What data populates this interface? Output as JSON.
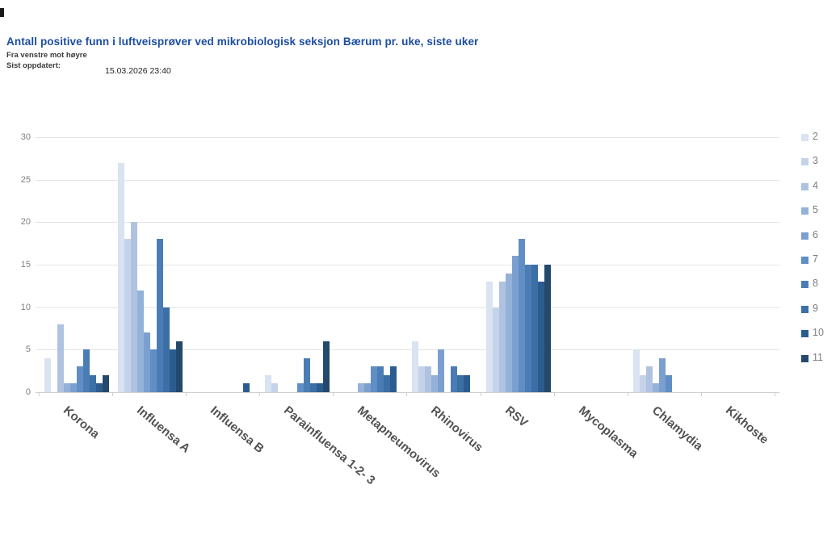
{
  "header": {
    "title": "Antall positive funn i luftveisprøver ved mikrobiologisk seksjon Bærum pr. uke, siste uker",
    "subtitle": "Fra venstre mot høyre",
    "last_updated_label": "Sist oppdatert:",
    "last_updated_value": "15.03.2026 23:40"
  },
  "chart_data": {
    "type": "bar",
    "title": "Antall positive funn i luftveisprøver ved mikrobiologisk seksjon Bærum pr. uke, siste uker",
    "xlabel": "",
    "ylabel": "",
    "ylim": [
      0,
      30
    ],
    "yticks": [
      0,
      5,
      10,
      15,
      20,
      25,
      30
    ],
    "grid": true,
    "legend_position": "right",
    "categories": [
      "Korona",
      "Influensa A",
      "Influensa B",
      "Parainfluensa 1-2- 3",
      "Metapneumovirus",
      "Rhinovirus",
      "RSV",
      "Mycoplasma",
      "Chlamydia",
      "Kikhoste"
    ],
    "series": [
      {
        "name": "2",
        "color": "#D9E3F1",
        "values": [
          4,
          27,
          0,
          2,
          0,
          6,
          13,
          0,
          5,
          0
        ]
      },
      {
        "name": "3",
        "color": "#C5D3EA",
        "values": [
          0,
          18,
          0,
          1,
          0,
          3,
          10,
          0,
          2,
          0
        ]
      },
      {
        "name": "4",
        "color": "#AFC3E1",
        "values": [
          8,
          20,
          0,
          0,
          0,
          3,
          13,
          0,
          3,
          0
        ]
      },
      {
        "name": "5",
        "color": "#94B1D8",
        "values": [
          1,
          12,
          0,
          0,
          1,
          2,
          14,
          0,
          1,
          0
        ]
      },
      {
        "name": "6",
        "color": "#7BA0CF",
        "values": [
          1,
          7,
          0,
          0,
          1,
          5,
          16,
          0,
          4,
          0
        ]
      },
      {
        "name": "7",
        "color": "#608EC5",
        "values": [
          3,
          5,
          0,
          1,
          3,
          0,
          18,
          0,
          2,
          0
        ]
      },
      {
        "name": "8",
        "color": "#4B7DB4",
        "values": [
          5,
          18,
          0,
          4,
          3,
          3,
          15,
          0,
          0,
          0
        ]
      },
      {
        "name": "9",
        "color": "#3B6FA6",
        "values": [
          2,
          10,
          0,
          1,
          2,
          2,
          15,
          0,
          0,
          0
        ]
      },
      {
        "name": "10",
        "color": "#2C5C8F",
        "values": [
          1,
          5,
          1,
          1,
          3,
          2,
          13,
          0,
          0,
          0
        ]
      },
      {
        "name": "11",
        "color": "#24496B",
        "values": [
          2,
          6,
          0,
          6,
          0,
          0,
          15,
          0,
          0,
          0
        ]
      }
    ]
  }
}
